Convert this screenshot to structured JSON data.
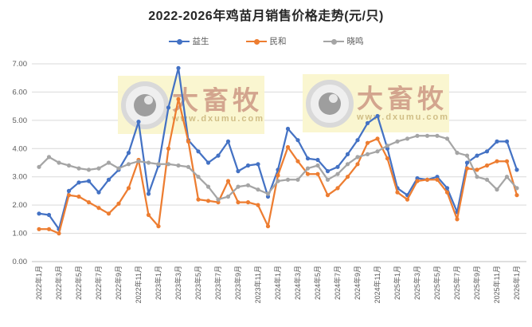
{
  "watermark": {
    "brand": "大畜牧",
    "url": "www.dxumu.com"
  },
  "y_axis": {
    "labels": [
      "0.00",
      "1.00",
      "2.00",
      "3.00",
      "4.00",
      "5.00",
      "6.00",
      "7.00"
    ],
    "min": 0,
    "max": 7,
    "step": 1
  },
  "x_axis": {
    "tick_every": 2,
    "first_label": "2022年1月",
    "last_label": "2026年1月"
  },
  "chart_data": {
    "type": "line",
    "title": "2022-2026年鸡苗月销售价格走势(元/只)",
    "legend_position": "top",
    "grid": true,
    "ylim": [
      0,
      7
    ],
    "months": [
      "2022年1月",
      "2022年2月",
      "2022年3月",
      "2022年4月",
      "2022年5月",
      "2022年6月",
      "2022年7月",
      "2022年8月",
      "2022年9月",
      "2022年10月",
      "2022年11月",
      "2022年12月",
      "2023年1月",
      "2023年2月",
      "2023年3月",
      "2023年4月",
      "2023年5月",
      "2023年6月",
      "2023年7月",
      "2023年8月",
      "2023年9月",
      "2023年10月",
      "2023年11月",
      "2023年12月",
      "2024年1月",
      "2024年2月",
      "2024年3月",
      "2024年4月",
      "2024年5月",
      "2024年6月",
      "2024年7月",
      "2024年8月",
      "2024年9月",
      "2024年10月",
      "2024年11月",
      "2024年12月",
      "2025年1月",
      "2025年2月",
      "2025年3月",
      "2025年4月",
      "2025年5月",
      "2025年6月",
      "2025年7月",
      "2025年8月",
      "2025年9月",
      "2025年10月",
      "2025年11月",
      "2025年12月",
      "2026年1月"
    ],
    "series": [
      {
        "name": "益生",
        "color": "#4472C4",
        "values": [
          1.7,
          1.65,
          1.15,
          2.5,
          2.8,
          2.85,
          2.45,
          2.9,
          3.25,
          3.85,
          4.95,
          2.4,
          3.4,
          5.45,
          6.85,
          4.3,
          3.9,
          3.5,
          3.75,
          4.25,
          3.2,
          3.4,
          3.45,
          2.3,
          3.25,
          4.7,
          4.3,
          3.65,
          3.6,
          3.2,
          3.35,
          3.8,
          4.3,
          4.9,
          5.15,
          4.0,
          2.6,
          2.35,
          2.95,
          2.9,
          3.0,
          2.6,
          1.75,
          3.5,
          3.75,
          3.9,
          4.25,
          4.25,
          3.25
        ]
      },
      {
        "name": "民和",
        "color": "#ED7D31",
        "values": [
          1.15,
          1.15,
          1.0,
          2.35,
          2.3,
          2.1,
          1.9,
          1.7,
          2.05,
          2.6,
          3.6,
          1.65,
          1.25,
          4.0,
          5.75,
          4.25,
          2.2,
          2.15,
          2.1,
          2.85,
          2.1,
          2.1,
          2.0,
          1.25,
          3.05,
          4.05,
          3.55,
          3.1,
          3.1,
          2.35,
          2.6,
          3.0,
          3.45,
          4.2,
          4.35,
          3.65,
          2.45,
          2.2,
          2.85,
          2.9,
          2.9,
          2.45,
          1.5,
          3.3,
          3.25,
          3.4,
          3.55,
          3.55,
          2.35
        ]
      },
      {
        "name": "晓鸣",
        "color": "#A5A5A5",
        "values": [
          3.35,
          3.7,
          3.5,
          3.4,
          3.3,
          3.25,
          3.3,
          3.5,
          3.3,
          3.45,
          3.55,
          3.5,
          3.45,
          3.45,
          3.4,
          3.35,
          3.0,
          2.65,
          2.2,
          2.3,
          2.65,
          2.7,
          2.55,
          2.4,
          2.85,
          2.9,
          2.9,
          3.3,
          3.4,
          2.9,
          3.1,
          3.45,
          3.7,
          3.8,
          3.9,
          4.1,
          4.25,
          4.35,
          4.45,
          4.45,
          4.45,
          4.35,
          3.85,
          3.75,
          3.0,
          2.9,
          2.55,
          3.0,
          2.6
        ]
      }
    ]
  }
}
